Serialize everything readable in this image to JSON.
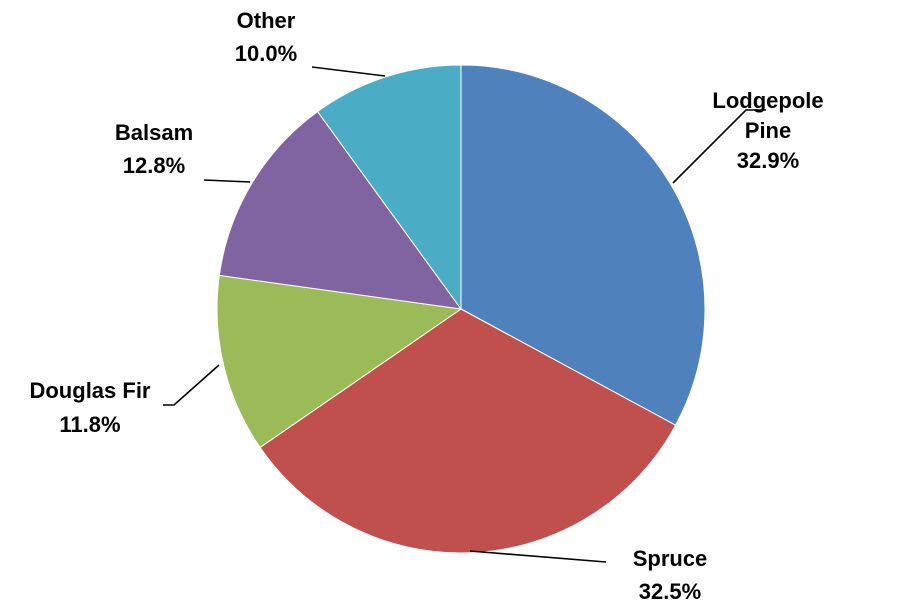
{
  "chart_data": {
    "type": "pie",
    "title": "",
    "start_angle_deg": 0,
    "direction": "clockwise",
    "label_format": "category-and-percent",
    "slices": [
      {
        "label": "Lodgepole Pine",
        "label_lines": [
          "Lodgepole",
          "Pine"
        ],
        "percent_label": "32.9%",
        "value": 32.9,
        "color": "#4F81BD"
      },
      {
        "label": "Spruce",
        "label_lines": [
          "Spruce"
        ],
        "percent_label": "32.5%",
        "value": 32.5,
        "color": "#C0504D"
      },
      {
        "label": "Douglas Fir",
        "label_lines": [
          "Douglas Fir"
        ],
        "percent_label": "11.8%",
        "value": 11.8,
        "color": "#9BBB59"
      },
      {
        "label": "Balsam",
        "label_lines": [
          "Balsam"
        ],
        "percent_label": "12.8%",
        "value": 12.8,
        "color": "#8064A2"
      },
      {
        "label": "Other",
        "label_lines": [
          "Other"
        ],
        "percent_label": "10.0%",
        "value": 10.0,
        "color": "#4BACC6"
      }
    ]
  }
}
